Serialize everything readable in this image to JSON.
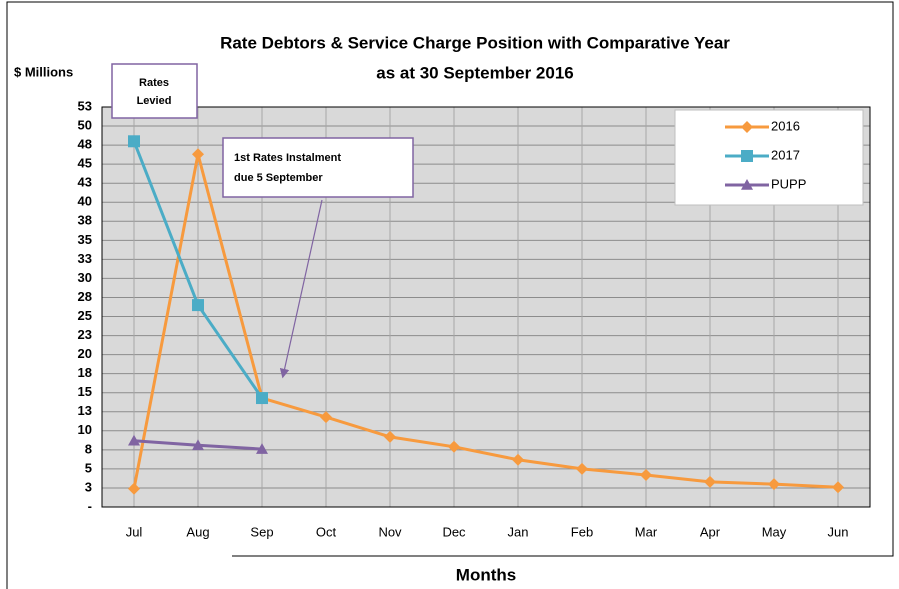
{
  "chart_data": {
    "type": "line",
    "title": [
      "Rate Debtors & Service Charge Position with Comparative Year",
      "as at 30 September 2016"
    ],
    "y_label": "$ Millions",
    "x_label": "Months",
    "annotations": [
      [
        "Rates",
        "Levied"
      ],
      [
        "1st Rates Instalment",
        "due 5 September"
      ]
    ],
    "categories": [
      "Jul",
      "Aug",
      "Sep",
      "Oct",
      "Nov",
      "Dec",
      "Jan",
      "Feb",
      "Mar",
      "Apr",
      "May",
      "Jun"
    ],
    "series": [
      {
        "name": "2016",
        "color": "#f79a3e",
        "marker": "diamond",
        "values": [
          2.4,
          46.3,
          14.3,
          11.8,
          9.2,
          7.9,
          6.2,
          5.0,
          4.2,
          3.3,
          3.0,
          2.6
        ]
      },
      {
        "name": "2017",
        "color": "#4bacc6",
        "marker": "square",
        "values": [
          48.0,
          26.5,
          14.3,
          null,
          null,
          null,
          null,
          null,
          null,
          null,
          null,
          null
        ]
      },
      {
        "name": "PUPP",
        "color": "#8064a2",
        "marker": "triangle",
        "values": [
          8.7,
          8.1,
          7.6,
          null,
          null,
          null,
          null,
          null,
          null,
          null,
          null,
          null
        ]
      }
    ],
    "ylim": [
      0,
      52.5
    ],
    "yticks": [
      {
        "value": 0,
        "label": "-"
      },
      {
        "value": 2.5,
        "label": "3"
      },
      5,
      {
        "value": 7.5,
        "label": "8"
      },
      10,
      {
        "value": 12.5,
        "label": "13"
      },
      15,
      {
        "value": 17.5,
        "label": "18"
      },
      20,
      {
        "value": 22.5,
        "label": "23"
      },
      25,
      {
        "value": 27.5,
        "label": "28"
      },
      30,
      {
        "value": 32.5,
        "label": "33"
      },
      35,
      {
        "value": 37.5,
        "label": "38"
      },
      40,
      {
        "value": 42.5,
        "label": "43"
      },
      45,
      {
        "value": 47.5,
        "label": "48"
      },
      50,
      {
        "value": 52.5,
        "label": "53"
      }
    ],
    "grid": true,
    "legend": "upper right"
  }
}
